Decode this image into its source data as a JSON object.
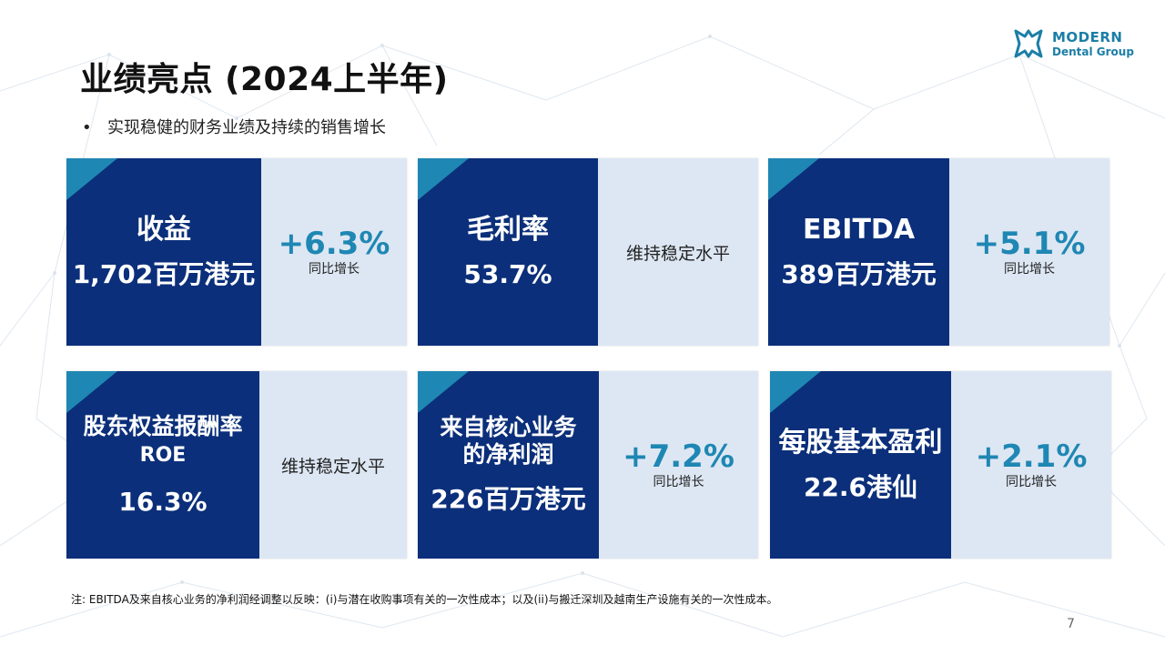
{
  "title": "业绩亮点 (2024上半年)",
  "bullet": "实现稳健的财务业绩及持续的销售增长",
  "logo": {
    "line1": "MODERN",
    "line2": "Dental Group",
    "icon": "tooth-icon",
    "color": "#1b7ea6"
  },
  "colors": {
    "card_dark": "#0b2f7a",
    "card_light": "#dde7f3",
    "accent": "#1f87b3"
  },
  "cards": [
    {
      "label": "收益",
      "value": "1,702百万港元",
      "change": "+6.3%",
      "change_note": "同比增长"
    },
    {
      "label": "毛利率",
      "value": "53.7%",
      "status": "维持稳定水平"
    },
    {
      "label": "EBITDA",
      "value": "389百万港元",
      "change": "+5.1%",
      "change_note": "同比增长"
    },
    {
      "label_line1": "股东权益报酬率",
      "label_line2": "ROE",
      "value": "16.3%",
      "status": "维持稳定水平"
    },
    {
      "label_line1": "来自核心业务",
      "label_line2": "的净利润",
      "value": "226百万港元",
      "change": "+7.2%",
      "change_note": "同比增长"
    },
    {
      "label": "每股基本盈利",
      "value": "22.6港仙",
      "change": "+2.1%",
      "change_note": "同比增长"
    }
  ],
  "note": "注: EBITDA及来自核心业务的净利润经调整以反映：(i)与潜在收购事项有关的一次性成本；以及(ii)与搬迁深圳及越南生产设施有关的一次性成本。",
  "page_number": "7"
}
